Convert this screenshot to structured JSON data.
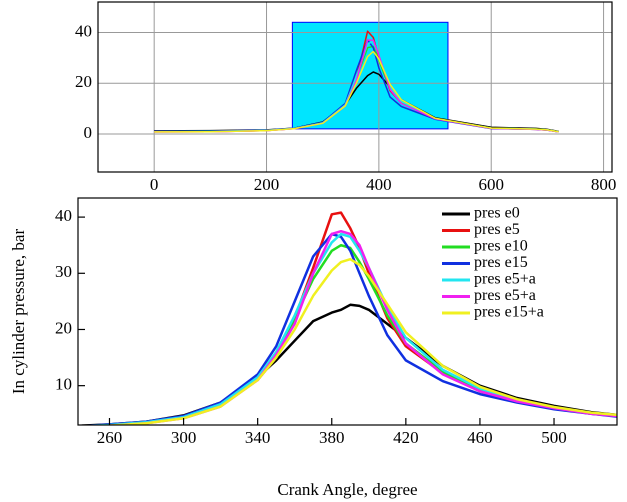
{
  "chart_data": [
    {
      "type": "line",
      "x": [
        0,
        100,
        200,
        250,
        300,
        340,
        360,
        380,
        390,
        400,
        420,
        440,
        500,
        600,
        680,
        700,
        720
      ],
      "series": [
        {
          "color": "#000000",
          "values": [
            1.2,
            1.3,
            1.6,
            2.3,
            4.7,
            11.5,
            18,
            23,
            24.4,
            23.5,
            18.5,
            13.5,
            6.4,
            2.6,
            2.2,
            1.8,
            1.0
          ]
        },
        {
          "color": "#e81010",
          "values": [
            0.8,
            0.9,
            1.3,
            2.1,
            4.3,
            11,
            22,
            40.5,
            38,
            30,
            17,
            12.2,
            6,
            2.2,
            1.8,
            1.5,
            0.8
          ]
        },
        {
          "color": "#22dd22",
          "values": [
            0.9,
            1,
            1.4,
            2.2,
            4.4,
            11.5,
            22,
            34,
            34.5,
            29,
            17.5,
            12.5,
            6,
            2.3,
            1.9,
            1.6,
            0.9
          ]
        },
        {
          "color": "#1030e0",
          "values": [
            1,
            1.1,
            1.5,
            2.3,
            4.6,
            12,
            25,
            37,
            34,
            26,
            14.5,
            10.8,
            5.8,
            2.1,
            1.8,
            1.5,
            0.9
          ]
        },
        {
          "color": "#22e6f0",
          "values": [
            0.9,
            1,
            1.4,
            2.2,
            4.4,
            11.5,
            22.5,
            35.5,
            36.5,
            31,
            18.5,
            12.8,
            6.1,
            2.3,
            1.9,
            1.6,
            0.9
          ]
        },
        {
          "color": "#f020f0",
          "values": [
            0.8,
            0.9,
            1.3,
            2.1,
            4.2,
            11,
            21,
            37,
            37,
            31,
            17.5,
            12,
            6,
            2.2,
            1.8,
            1.5,
            0.8
          ]
        },
        {
          "color": "#f0f020",
          "values": [
            0.8,
            0.9,
            1.3,
            2.1,
            4.2,
            11,
            20,
            30.5,
            32.5,
            29.5,
            19.5,
            13.5,
            6.2,
            2.3,
            1.9,
            1.6,
            0.9
          ]
        }
      ],
      "highlight": {
        "x": [
          246,
          523
        ],
        "y": [
          2,
          44
        ],
        "color": "#00e5ff"
      },
      "xlim": [
        -100,
        815
      ],
      "xticks": [
        0,
        200,
        400,
        600,
        800
      ],
      "ylim": [
        -15,
        52
      ],
      "yticks": [
        0,
        20,
        40
      ],
      "grid": true
    },
    {
      "type": "line",
      "x_label": "Crank Angle, degree",
      "y_label": "In cylinder pressure, bar",
      "x": [
        245,
        260,
        280,
        300,
        320,
        340,
        350,
        360,
        370,
        380,
        385,
        390,
        395,
        400,
        410,
        420,
        440,
        460,
        480,
        500,
        520,
        534
      ],
      "series": [
        {
          "name": "pres e0",
          "color": "#000000",
          "values": [
            2.9,
            3.1,
            3.6,
            4.7,
            7,
            11.5,
            14.5,
            18,
            21.5,
            23,
            23.5,
            24.4,
            24.2,
            23.5,
            21,
            18.5,
            13.5,
            10,
            7.8,
            6.4,
            5.3,
            4.8
          ]
        },
        {
          "name": "pres e5",
          "color": "#e81010",
          "values": [
            2.8,
            3,
            3.4,
            4.3,
            6.5,
            11,
            15,
            22,
            31,
            40.5,
            40.8,
            38,
            34.5,
            30,
            22,
            17,
            12.2,
            9,
            7.2,
            6,
            5,
            4.6
          ]
        },
        {
          "name": "pres e10",
          "color": "#22dd22",
          "values": [
            2.8,
            3,
            3.5,
            4.4,
            6.7,
            11.5,
            15.5,
            22,
            29,
            34,
            35,
            34.5,
            32,
            29,
            22.5,
            17.5,
            12.5,
            9.3,
            7.4,
            6.1,
            5.1,
            4.6
          ]
        },
        {
          "name": "pres e15",
          "color": "#1030e0",
          "values": [
            2.8,
            3.1,
            3.6,
            4.6,
            7,
            12,
            17,
            25,
            33,
            37,
            36.5,
            34,
            30,
            26,
            19,
            14.5,
            10.8,
            8.5,
            7,
            5.8,
            5,
            4.5
          ]
        },
        {
          "name": "pres e5+a",
          "color": "#22e6f0",
          "values": [
            2.8,
            3,
            3.5,
            4.4,
            6.7,
            11.5,
            16,
            22.5,
            30,
            35.5,
            37,
            36.5,
            34,
            31,
            24,
            18.5,
            12.8,
            9.5,
            7.5,
            6.1,
            5.1,
            4.7
          ]
        },
        {
          "name": "pres e5+a",
          "color": "#f020f0",
          "values": [
            2.8,
            2.9,
            3.3,
            4.2,
            6.3,
            11,
            15.5,
            21,
            30,
            37,
            37.5,
            37,
            35,
            31,
            23.5,
            17.5,
            12,
            9,
            7.2,
            6,
            5,
            4.6
          ]
        },
        {
          "name": "pres e15+a",
          "color": "#f0f020",
          "values": [
            2.8,
            2.9,
            3.3,
            4.2,
            6.3,
            11,
            15,
            20,
            26,
            30.5,
            32,
            32.5,
            31.5,
            29.5,
            24.5,
            19.5,
            13.5,
            9.8,
            7.6,
            6.2,
            5.2,
            4.8
          ]
        }
      ],
      "xlim": [
        243,
        534
      ],
      "xticks": [
        260,
        300,
        340,
        380,
        420,
        460,
        500
      ],
      "ylim": [
        3,
        43.4
      ],
      "yticks": [
        10,
        20,
        30,
        40
      ],
      "grid": false,
      "legend": "upper right"
    }
  ]
}
